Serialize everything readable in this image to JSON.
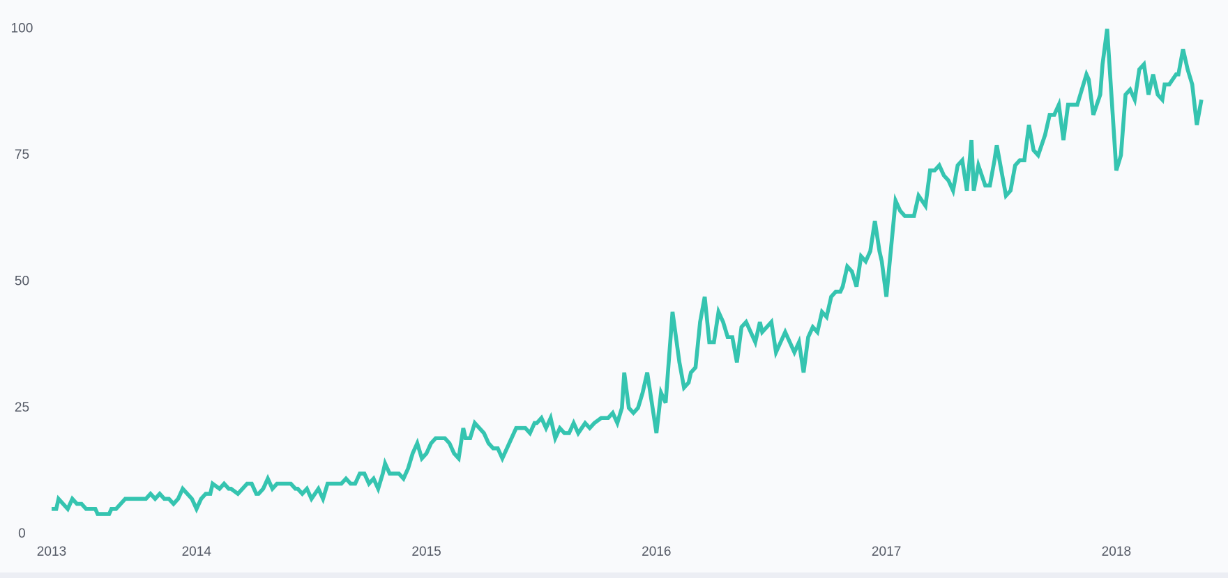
{
  "chart_data": {
    "type": "line",
    "color": "#35c4b0",
    "grid": false,
    "x": [
      2013.37,
      2013.39,
      2013.4,
      2013.44,
      2013.46,
      2013.48,
      2013.5,
      2013.52,
      2013.56,
      2013.57,
      2013.62,
      2013.63,
      2013.65,
      2013.69,
      2013.78,
      2013.8,
      2013.82,
      2013.84,
      2013.86,
      2013.88,
      2013.9,
      2013.92,
      2013.94,
      2013.98,
      2014.0,
      2014.02,
      2014.04,
      2014.06,
      2014.07,
      2014.1,
      2014.12,
      2014.14,
      2014.15,
      2014.18,
      2014.22,
      2014.24,
      2014.26,
      2014.27,
      2014.29,
      2014.31,
      2014.33,
      2014.35,
      2014.41,
      2014.43,
      2014.44,
      2014.46,
      2014.48,
      2014.5,
      2014.53,
      2014.55,
      2014.57,
      2014.63,
      2014.65,
      2014.67,
      2014.69,
      2014.71,
      2014.73,
      2014.75,
      2014.77,
      2014.79,
      2014.81,
      2014.82,
      2014.84,
      2014.88,
      2014.9,
      2014.92,
      2014.94,
      2014.96,
      2014.98,
      2015.0,
      2015.02,
      2015.04,
      2015.08,
      2015.1,
      2015.12,
      2015.14,
      2015.16,
      2015.17,
      2015.19,
      2015.21,
      2015.25,
      2015.27,
      2015.29,
      2015.31,
      2015.33,
      2015.39,
      2015.43,
      2015.45,
      2015.47,
      2015.48,
      2015.5,
      2015.52,
      2015.54,
      2015.56,
      2015.58,
      2015.6,
      2015.62,
      2015.64,
      2015.66,
      2015.69,
      2015.71,
      2015.73,
      2015.76,
      2015.79,
      2015.81,
      2015.83,
      2015.85,
      2015.86,
      2015.88,
      2015.9,
      2015.92,
      2015.94,
      2015.96,
      2016.0,
      2016.02,
      2016.04,
      2016.06,
      2016.07,
      2016.1,
      2016.12,
      2016.14,
      2016.15,
      2016.17,
      2016.19,
      2016.21,
      2016.23,
      2016.25,
      2016.27,
      2016.29,
      2016.31,
      2016.33,
      2016.35,
      2016.37,
      2016.39,
      2016.43,
      2016.45,
      2016.46,
      2016.5,
      2016.52,
      2016.54,
      2016.56,
      2016.6,
      2016.62,
      2016.64,
      2016.66,
      2016.68,
      2016.7,
      2016.72,
      2016.74,
      2016.76,
      2016.78,
      2016.8,
      2016.81,
      2016.83,
      2016.85,
      2016.87,
      2016.89,
      2016.91,
      2016.93,
      2016.95,
      2016.97,
      2016.98,
      2017.0,
      2017.04,
      2017.06,
      2017.08,
      2017.12,
      2017.14,
      2017.17,
      2017.19,
      2017.21,
      2017.23,
      2017.25,
      2017.27,
      2017.29,
      2017.31,
      2017.33,
      2017.35,
      2017.37,
      2017.38,
      2017.4,
      2017.43,
      2017.45,
      2017.47,
      2017.48,
      2017.5,
      2017.52,
      2017.54,
      2017.56,
      2017.58,
      2017.6,
      2017.62,
      2017.64,
      2017.66,
      2017.69,
      2017.71,
      2017.73,
      2017.75,
      2017.77,
      2017.79,
      2017.83,
      2017.85,
      2017.87,
      2017.88,
      2017.9,
      2017.93,
      2017.94,
      2017.96,
      2017.98,
      2018.0,
      2018.02,
      2018.04,
      2018.06,
      2018.08,
      2018.1,
      2018.12,
      2018.14,
      2018.16,
      2018.18,
      2018.2,
      2018.21,
      2018.23,
      2018.26,
      2018.27,
      2018.29,
      2018.31,
      2018.33,
      2018.35,
      2018.37
    ],
    "values": [
      5,
      5,
      7,
      5,
      7,
      6,
      6,
      5,
      5,
      4,
      4,
      5,
      5,
      7,
      7,
      8,
      7,
      8,
      7,
      7,
      6,
      7,
      9,
      7,
      5,
      7,
      8,
      8,
      10,
      9,
      10,
      9,
      9,
      8,
      10,
      10,
      8,
      8,
      9,
      11,
      9,
      10,
      10,
      9,
      9,
      8,
      9,
      7,
      9,
      7,
      10,
      10,
      11,
      10,
      10,
      12,
      12,
      10,
      11,
      9,
      12,
      14,
      12,
      12,
      11,
      13,
      16,
      18,
      15,
      16,
      18,
      19,
      19,
      18,
      16,
      15,
      21,
      19,
      19,
      22,
      20,
      18,
      17,
      17,
      15,
      21,
      21,
      20,
      22,
      22,
      23,
      21,
      23,
      19,
      21,
      20,
      20,
      22,
      20,
      22,
      21,
      22,
      23,
      23,
      24,
      22,
      25,
      32,
      25,
      24,
      25,
      28,
      32,
      20,
      28,
      26,
      38,
      44,
      34,
      29,
      30,
      32,
      33,
      42,
      47,
      38,
      38,
      44,
      42,
      39,
      39,
      34,
      41,
      42,
      38,
      42,
      40,
      42,
      36,
      38,
      40,
      36,
      38,
      32,
      39,
      41,
      40,
      44,
      43,
      47,
      48,
      48,
      49,
      53,
      52,
      49,
      55,
      54,
      56,
      62,
      56,
      54,
      47,
      66,
      64,
      63,
      63,
      67,
      65,
      72,
      72,
      73,
      71,
      70,
      68,
      73,
      74,
      68,
      78,
      68,
      73,
      69,
      69,
      74,
      77,
      72,
      67,
      68,
      73,
      74,
      74,
      81,
      76,
      75,
      79,
      83,
      83,
      85,
      78,
      85,
      85,
      88,
      91,
      90,
      83,
      87,
      93,
      100,
      86,
      72,
      75,
      87,
      88,
      86,
      92,
      93,
      87,
      91,
      87,
      86,
      89,
      89,
      91,
      91,
      96,
      92,
      89,
      81,
      86
    ],
    "xlim": [
      2013.36,
      2018.38
    ],
    "xticks": [
      {
        "value": 2013.37,
        "label": "2013"
      },
      2014,
      2015,
      2016,
      2017,
      2018
    ],
    "ylim": [
      0,
      100
    ],
    "yticks": [
      0,
      25,
      50,
      75,
      100
    ]
  }
}
